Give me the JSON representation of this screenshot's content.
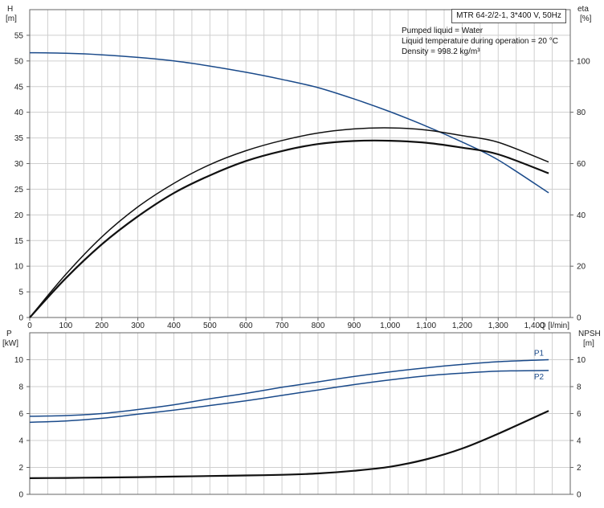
{
  "title": "MTR 64-2/2-1, 3*400 V, 50Hz",
  "info": {
    "liquid": "Pumped liquid = Water",
    "temperature": "Liquid temperature during operation = 20 °C",
    "density": "Density = 998.2 kg/m³"
  },
  "chart_data": [
    {
      "type": "line",
      "panel": "top",
      "y_label_left": [
        "H",
        "[m]"
      ],
      "y_label_right": [
        "eta",
        "[%]"
      ],
      "x_label": "Q [l/min]",
      "xlim": [
        0,
        1500
      ],
      "ylim_left": [
        0,
        60
      ],
      "ylim_right": [
        0,
        120
      ],
      "x_ticks": [
        "0",
        "100",
        "200",
        "300",
        "400",
        "500",
        "600",
        "700",
        "800",
        "900",
        "1,000",
        "1,100",
        "1,200",
        "1,300",
        "1,400"
      ],
      "y_ticks_left": [
        "0",
        "5",
        "10",
        "15",
        "20",
        "25",
        "30",
        "35",
        "40",
        "45",
        "50",
        "55"
      ],
      "y_ticks_right": [
        "0",
        "20",
        "40",
        "60",
        "80",
        "100"
      ],
      "grid": true,
      "series": [
        {
          "axis": "left",
          "color": "#1a4a8a",
          "x": [
            0,
            100,
            200,
            300,
            400,
            500,
            600,
            700,
            800,
            900,
            1000,
            1100,
            1200,
            1300,
            1440
          ],
          "y": [
            51.6,
            51.5,
            51.2,
            50.7,
            50.0,
            49.0,
            47.8,
            46.4,
            44.8,
            42.6,
            40.1,
            37.3,
            34.2,
            30.7,
            24.3
          ]
        },
        {
          "axis": "right",
          "color": "#111111",
          "x": [
            0,
            100,
            200,
            300,
            400,
            500,
            600,
            700,
            800,
            900,
            1000,
            1100,
            1200,
            1300,
            1440
          ],
          "y": [
            0,
            15.3,
            28.5,
            39.4,
            48.5,
            55.4,
            61.0,
            64.9,
            67.6,
            68.8,
            68.9,
            68.1,
            66.2,
            63.6,
            56.2
          ]
        },
        {
          "axis": "right",
          "color": "#111111",
          "x": [
            0,
            100,
            200,
            300,
            400,
            500,
            600,
            700,
            800,
            900,
            1000,
            1100,
            1200,
            1300,
            1440
          ],
          "y": [
            0,
            16.8,
            31.4,
            43.1,
            52.3,
            59.6,
            65.0,
            69.0,
            71.9,
            73.5,
            73.9,
            73.1,
            70.9,
            68.3,
            60.6
          ]
        }
      ]
    },
    {
      "type": "line",
      "panel": "bottom",
      "y_label_left": [
        "P",
        "[kW]"
      ],
      "y_label_right": [
        "NPSH",
        "[m]"
      ],
      "xlim": [
        0,
        1500
      ],
      "ylim_left": [
        0,
        12
      ],
      "ylim_right": [
        0,
        12
      ],
      "y_ticks_left": [
        "0",
        "2",
        "4",
        "6",
        "8",
        "10"
      ],
      "y_ticks_right": [
        "0",
        "2",
        "4",
        "6",
        "8",
        "10"
      ],
      "grid": true,
      "series": [
        {
          "name": "P1",
          "axis": "left",
          "color": "#1a4a8a",
          "x": [
            0,
            100,
            200,
            300,
            400,
            500,
            600,
            700,
            800,
            900,
            1000,
            1100,
            1200,
            1300,
            1440
          ],
          "y": [
            5.8,
            5.85,
            6.0,
            6.3,
            6.65,
            7.1,
            7.5,
            7.95,
            8.35,
            8.75,
            9.1,
            9.4,
            9.65,
            9.85,
            10.0
          ]
        },
        {
          "name": "P2",
          "axis": "left",
          "color": "#1a4a8a",
          "x": [
            0,
            100,
            200,
            300,
            400,
            500,
            600,
            700,
            800,
            900,
            1000,
            1100,
            1200,
            1300,
            1440
          ],
          "y": [
            5.35,
            5.45,
            5.65,
            5.95,
            6.25,
            6.6,
            6.95,
            7.35,
            7.75,
            8.15,
            8.5,
            8.8,
            9.0,
            9.15,
            9.2
          ]
        },
        {
          "axis": "right",
          "color": "#111111",
          "x": [
            0,
            100,
            200,
            300,
            400,
            500,
            600,
            700,
            800,
            900,
            1000,
            1100,
            1200,
            1300,
            1440
          ],
          "y": [
            1.2,
            1.22,
            1.25,
            1.28,
            1.32,
            1.36,
            1.4,
            1.45,
            1.55,
            1.75,
            2.05,
            2.6,
            3.4,
            4.5,
            6.2
          ]
        }
      ]
    }
  ]
}
